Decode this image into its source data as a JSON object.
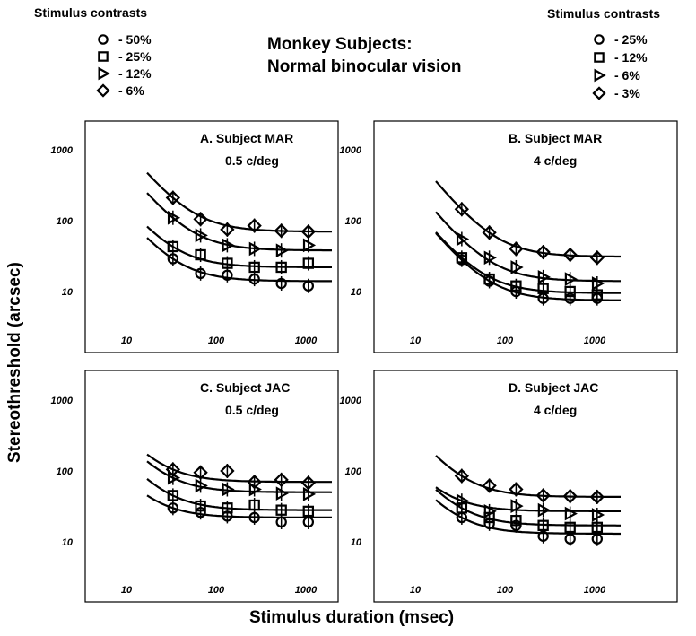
{
  "figure": {
    "title_line1": "Monkey Subjects:",
    "title_line2": "Normal binocular vision",
    "y_axis_label": "Stereothreshold (arcsec)",
    "x_axis_label": "Stimulus duration (msec)"
  },
  "legend_left": {
    "heading": "Stimulus contrasts",
    "entries": [
      {
        "marker": "circle",
        "label": "- 50%"
      },
      {
        "marker": "square",
        "label": "- 25%"
      },
      {
        "marker": "triangle",
        "label": "- 12%"
      },
      {
        "marker": "diamond",
        "label": "- 6%"
      }
    ]
  },
  "legend_right": {
    "heading": "Stimulus contrasts",
    "entries": [
      {
        "marker": "circle",
        "label": "- 25%"
      },
      {
        "marker": "square",
        "label": "- 12%"
      },
      {
        "marker": "triangle",
        "label": "- 6%"
      },
      {
        "marker": "diamond",
        "label": "- 3%"
      }
    ]
  },
  "chart_data": [
    {
      "type": "scatter",
      "panel": "A",
      "title_line1": "A.  Subject MAR",
      "title_line2": "0.5 c/deg",
      "x_scale": "log",
      "y_scale": "log",
      "xlim": [
        3,
        2000
      ],
      "ylim": [
        3,
        3000
      ],
      "x_ticks": [
        10,
        100,
        1000
      ],
      "y_ticks": [
        10,
        100,
        1000
      ],
      "x_tick_labels": [
        "10",
        "100",
        "1000"
      ],
      "y_tick_labels": [
        "10",
        "100",
        "1000"
      ],
      "series": [
        {
          "marker": "diamond",
          "x": [
            33,
            67,
            133,
            267,
            533,
            1067
          ],
          "y": [
            210,
            105,
            75,
            85,
            72,
            70
          ],
          "fit_floor": 70
        },
        {
          "marker": "triangle",
          "x": [
            33,
            67,
            133,
            267,
            533,
            1067
          ],
          "y": [
            110,
            62,
            45,
            40,
            38,
            45
          ],
          "fit_floor": 38
        },
        {
          "marker": "square",
          "x": [
            33,
            67,
            133,
            267,
            533,
            1067
          ],
          "y": [
            43,
            33,
            25,
            22,
            22,
            25
          ],
          "fit_floor": 22
        },
        {
          "marker": "circle",
          "x": [
            33,
            67,
            133,
            267,
            533,
            1067
          ],
          "y": [
            29,
            18,
            17,
            15,
            13,
            12
          ],
          "fit_floor": 14
        }
      ]
    },
    {
      "type": "scatter",
      "panel": "B",
      "title_line1": "B.  Subject MAR",
      "title_line2": "4 c/deg",
      "x_scale": "log",
      "y_scale": "log",
      "xlim": [
        3,
        2000
      ],
      "ylim": [
        3,
        3000
      ],
      "x_ticks": [
        10,
        100,
        1000
      ],
      "y_ticks": [
        10,
        100,
        1000
      ],
      "x_tick_labels": [
        "10",
        "100",
        "1000"
      ],
      "y_tick_labels": [
        "10",
        "100",
        "1000"
      ],
      "series": [
        {
          "marker": "diamond",
          "x": [
            33,
            67,
            133,
            267,
            533,
            1067
          ],
          "y": [
            145,
            68,
            40,
            36,
            33,
            30
          ],
          "fit_floor": 31
        },
        {
          "marker": "triangle",
          "x": [
            33,
            67,
            133,
            267,
            533,
            1067
          ],
          "y": [
            55,
            30,
            22,
            16,
            15,
            13
          ],
          "fit_floor": 14
        },
        {
          "marker": "square",
          "x": [
            33,
            67,
            133,
            267,
            533,
            1067
          ],
          "y": [
            30,
            15,
            12,
            11,
            10,
            9
          ],
          "fit_floor": 9.5
        },
        {
          "marker": "circle",
          "x": [
            33,
            67,
            133,
            267,
            533,
            1067
          ],
          "y": [
            28,
            14,
            10,
            8,
            8,
            8
          ],
          "fit_floor": 7.5
        }
      ]
    },
    {
      "type": "scatter",
      "panel": "C",
      "title_line1": "C.  Subject JAC",
      "title_line2": "0.5 c/deg",
      "x_scale": "log",
      "y_scale": "log",
      "xlim": [
        3,
        2000
      ],
      "ylim": [
        3,
        3000
      ],
      "x_ticks": [
        10,
        100,
        1000
      ],
      "y_ticks": [
        10,
        100,
        1000
      ],
      "x_tick_labels": [
        "10",
        "100",
        "1000"
      ],
      "y_tick_labels": [
        "10",
        "100",
        "1000"
      ],
      "series": [
        {
          "marker": "diamond",
          "x": [
            33,
            67,
            133,
            267,
            533,
            1067
          ],
          "y": [
            105,
            95,
            100,
            70,
            75,
            68
          ],
          "fit_floor": 70
        },
        {
          "marker": "triangle",
          "x": [
            33,
            67,
            133,
            267,
            533,
            1067
          ],
          "y": [
            80,
            62,
            55,
            55,
            48,
            47
          ],
          "fit_floor": 50
        },
        {
          "marker": "square",
          "x": [
            33,
            67,
            133,
            267,
            533,
            1067
          ],
          "y": [
            45,
            32,
            30,
            33,
            28,
            27
          ],
          "fit_floor": 28
        },
        {
          "marker": "circle",
          "x": [
            33,
            67,
            133,
            267,
            533,
            1067
          ],
          "y": [
            30,
            26,
            23,
            22,
            19,
            19
          ],
          "fit_floor": 22
        }
      ]
    },
    {
      "type": "scatter",
      "panel": "D",
      "title_line1": "D.  Subject JAC",
      "title_line2": "4 c/deg",
      "x_scale": "log",
      "y_scale": "log",
      "xlim": [
        3,
        2000
      ],
      "ylim": [
        3,
        3000
      ],
      "x_ticks": [
        10,
        100,
        1000
      ],
      "y_ticks": [
        10,
        100,
        1000
      ],
      "x_tick_labels": [
        "10",
        "100",
        "1000"
      ],
      "y_tick_labels": [
        "10",
        "100",
        "1000"
      ],
      "series": [
        {
          "marker": "diamond",
          "x": [
            33,
            67,
            133,
            267,
            533,
            1067
          ],
          "y": [
            85,
            62,
            55,
            45,
            44,
            43
          ],
          "fit_floor": 43
        },
        {
          "marker": "triangle",
          "x": [
            33,
            67,
            133,
            267,
            533,
            1067
          ],
          "y": [
            38,
            27,
            32,
            28,
            25,
            24
          ],
          "fit_floor": 27
        },
        {
          "marker": "square",
          "x": [
            33,
            67,
            133,
            267,
            533,
            1067
          ],
          "y": [
            30,
            22,
            20,
            17,
            16,
            16
          ],
          "fit_floor": 17
        },
        {
          "marker": "circle",
          "x": [
            33,
            67,
            133,
            267,
            533,
            1067
          ],
          "y": [
            22,
            18,
            17,
            12,
            11,
            11
          ],
          "fit_floor": 13
        }
      ]
    }
  ]
}
